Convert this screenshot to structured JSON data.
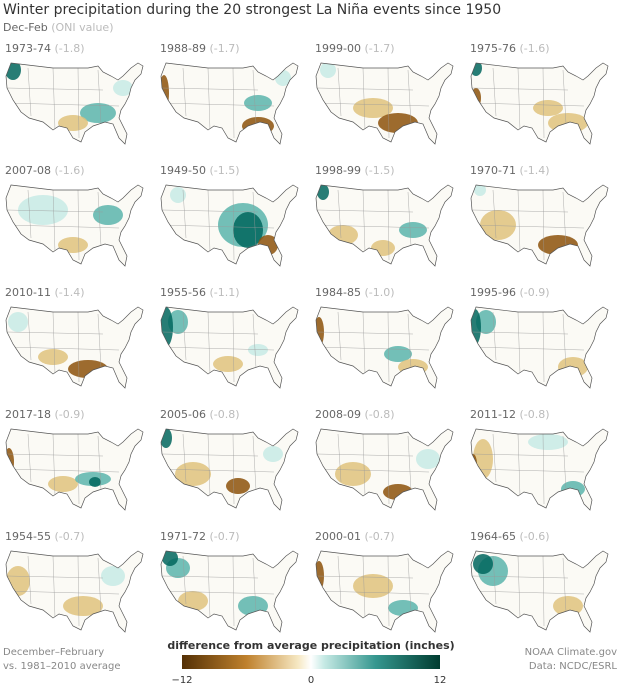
{
  "header": {
    "title": "Winter precipitation during the 20 strongest La Niña events since 1950",
    "period": "Dec-Feb",
    "note": "(ONI value)"
  },
  "panels": [
    {
      "year": "1973-74",
      "oni": "(-1.8)"
    },
    {
      "year": "1988-89",
      "oni": "(-1.7)"
    },
    {
      "year": "1999-00",
      "oni": "(-1.7)"
    },
    {
      "year": "1975-76",
      "oni": "(-1.6)"
    },
    {
      "year": "2007-08",
      "oni": "(-1.6)"
    },
    {
      "year": "1949-50",
      "oni": "(-1.5)"
    },
    {
      "year": "1998-99",
      "oni": "(-1.5)"
    },
    {
      "year": "1970-71",
      "oni": "(-1.4)"
    },
    {
      "year": "2010-11",
      "oni": "(-1.4)"
    },
    {
      "year": "1955-56",
      "oni": "(-1.1)"
    },
    {
      "year": "1984-85",
      "oni": "(-1.0)"
    },
    {
      "year": "1995-96",
      "oni": "(-0.9)"
    },
    {
      "year": "2017-18",
      "oni": "(-0.9)"
    },
    {
      "year": "2005-06",
      "oni": "(-0.8)"
    },
    {
      "year": "2008-09",
      "oni": "(-0.8)"
    },
    {
      "year": "2011-12",
      "oni": "(-0.8)"
    },
    {
      "year": "1954-55",
      "oni": "(-0.7)"
    },
    {
      "year": "1971-72",
      "oni": "(-0.7)"
    },
    {
      "year": "2000-01",
      "oni": "(-0.7)"
    },
    {
      "year": "1964-65",
      "oni": "(-0.6)"
    }
  ],
  "legend": {
    "title": "difference from average precipitation (inches)",
    "ticks": [
      "−12",
      "0",
      "12"
    ]
  },
  "footer": {
    "left": [
      "December–February",
      "vs. 1981–2010 average"
    ],
    "right": [
      "NOAA Climate.gov",
      "Data: NCDC/ESRL"
    ]
  }
}
